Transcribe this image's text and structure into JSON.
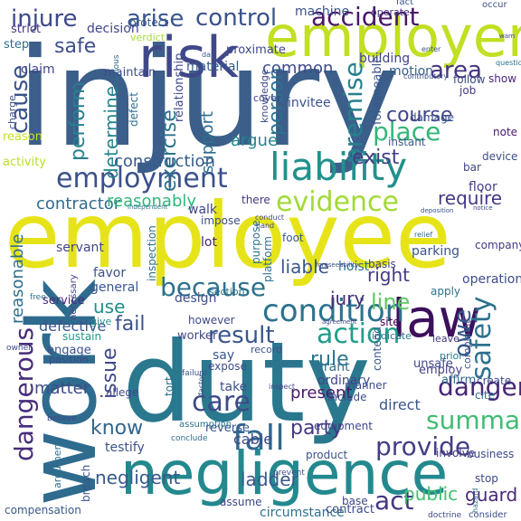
{
  "words": [
    {
      "text": "injury",
      "color": "#3b5f8a"
    },
    {
      "text": "employee",
      "color": "#e6e419"
    },
    {
      "text": "duty",
      "color": "#2a788e"
    },
    {
      "text": "work",
      "color": "#2f6b8e"
    },
    {
      "text": "negligence",
      "color": "#23898e"
    },
    {
      "text": "employer",
      "color": "#c2df23"
    },
    {
      "text": "risk",
      "color": "#3f4889"
    },
    {
      "text": "law",
      "color": "#3d0f5c"
    },
    {
      "text": "liability",
      "color": "#21918c"
    },
    {
      "text": "condition",
      "color": "#2c728e"
    },
    {
      "text": "fall",
      "color": "#31688e"
    },
    {
      "text": "employment",
      "color": "#3b518b"
    },
    {
      "text": "injure",
      "color": "#3e4989"
    },
    {
      "text": "arise",
      "color": "#39568c"
    },
    {
      "text": "control",
      "color": "#3b528b"
    },
    {
      "text": "accident",
      "color": "#481668"
    },
    {
      "text": "area",
      "color": "#46337f"
    },
    {
      "text": "person",
      "color": "#2c718e"
    },
    {
      "text": "premise",
      "color": "#27808e"
    },
    {
      "text": "place",
      "color": "#34b679"
    },
    {
      "text": "evidence",
      "color": "#a2da37"
    },
    {
      "text": "safety",
      "color": "#2d708e"
    },
    {
      "text": "danger",
      "color": "#482576"
    },
    {
      "text": "summary",
      "color": "#3fbc73"
    },
    {
      "text": "provide",
      "color": "#433e85"
    },
    {
      "text": "care",
      "color": "#3e4a89"
    },
    {
      "text": "because",
      "color": "#2d718e"
    },
    {
      "text": "result",
      "color": "#39558c"
    },
    {
      "text": "action",
      "color": "#1f9e89"
    },
    {
      "text": "issue",
      "color": "#3f4788"
    },
    {
      "text": "dangerous",
      "color": "#472d7b"
    },
    {
      "text": "cause",
      "color": "#3a538b"
    },
    {
      "text": "perform",
      "color": "#27808e"
    },
    {
      "text": "determine",
      "color": "#25848e"
    },
    {
      "text": "exercise",
      "color": "#2c738e"
    },
    {
      "text": "exist",
      "color": "#433d84"
    },
    {
      "text": "course",
      "color": "#404688"
    },
    {
      "text": "construction",
      "color": "#375b8d"
    },
    {
      "text": "contractor",
      "color": "#2f6c8e"
    },
    {
      "text": "reasonably",
      "color": "#31b57b"
    },
    {
      "text": "require",
      "color": "#443983"
    },
    {
      "text": "safe",
      "color": "#3d4e8a"
    },
    {
      "text": "common",
      "color": "#3e4c8a"
    },
    {
      "text": "act",
      "color": "#453581"
    },
    {
      "text": "know",
      "color": "#32658e"
    },
    {
      "text": "party",
      "color": "#453882"
    },
    {
      "text": "use",
      "color": "#21908d"
    },
    {
      "text": "fail",
      "color": "#3a538b"
    },
    {
      "text": "jury",
      "color": "#472c7a"
    },
    {
      "text": "line",
      "color": "#5ec962"
    },
    {
      "text": "owe",
      "color": "#38588c"
    },
    {
      "text": "negligent",
      "color": "#38598c"
    },
    {
      "text": "ladder",
      "color": "#38588c"
    },
    {
      "text": "public",
      "color": "#43bf71"
    },
    {
      "text": "guard",
      "color": "#482878"
    },
    {
      "text": "right",
      "color": "#443a83"
    },
    {
      "text": "liable",
      "color": "#39568c"
    },
    {
      "text": "support",
      "color": "#2e6f8e"
    },
    {
      "text": "argue",
      "color": "#24868e"
    },
    {
      "text": "rule",
      "color": "#2c728e"
    },
    {
      "text": "present",
      "color": "#481769"
    },
    {
      "text": "matter",
      "color": "#3e4c8a"
    },
    {
      "text": "reasonable",
      "color": "#2e6f8e"
    },
    {
      "text": "defective",
      "color": "#3a548c"
    },
    {
      "text": "machine",
      "color": "#3b518b"
    },
    {
      "text": "protect",
      "color": "#39568c"
    },
    {
      "text": "decision",
      "color": "#404588"
    },
    {
      "text": "material",
      "color": "#365c8d"
    },
    {
      "text": "motion",
      "color": "#34618d"
    },
    {
      "text": "building",
      "color": "#414487"
    },
    {
      "text": "invitee",
      "color": "#3b528b"
    },
    {
      "text": "claim",
      "color": "#404688"
    },
    {
      "text": "maintain",
      "color": "#3e4a89"
    },
    {
      "text": "strict",
      "color": "#453781"
    },
    {
      "text": "step",
      "color": "#2e6e8e"
    },
    {
      "text": "proximate",
      "color": "#3f4788"
    },
    {
      "text": "verdict",
      "color": "#a5db36"
    },
    {
      "text": "operate",
      "color": "#453581"
    },
    {
      "text": "occur",
      "color": "#3d4e8a"
    },
    {
      "text": "fact",
      "color": "#3b528b"
    },
    {
      "text": "show",
      "color": "#482878"
    },
    {
      "text": "follow",
      "color": "#3e4989"
    },
    {
      "text": "job",
      "color": "#453882"
    },
    {
      "text": "reason",
      "color": "#c8e020"
    },
    {
      "text": "activity",
      "color": "#b5de2b"
    },
    {
      "text": "relationship",
      "color": "#3f4788"
    },
    {
      "text": "defect",
      "color": "#2e6f8e"
    },
    {
      "text": "knowledge",
      "color": "#3e4a89"
    },
    {
      "text": "cover",
      "color": "#404688"
    },
    {
      "text": "instant",
      "color": "#38598c"
    },
    {
      "text": "damage",
      "color": "#3b528b"
    },
    {
      "text": "foreseeable",
      "color": "#39568c"
    },
    {
      "text": "note",
      "color": "#48186a"
    },
    {
      "text": "device",
      "color": "#3e4c8a"
    },
    {
      "text": "bar",
      "color": "#3f4788"
    },
    {
      "text": "floor",
      "color": "#433e85"
    },
    {
      "text": "there",
      "color": "#453781"
    },
    {
      "text": "walk",
      "color": "#414487"
    },
    {
      "text": "impose",
      "color": "#3d4e8a"
    },
    {
      "text": "servant",
      "color": "#404688"
    },
    {
      "text": "lot",
      "color": "#482475"
    },
    {
      "text": "foot",
      "color": "#38588c"
    },
    {
      "text": "purpose",
      "color": "#2c738e"
    },
    {
      "text": "platform",
      "color": "#2e6e8e"
    },
    {
      "text": "hoist",
      "color": "#2d708e"
    },
    {
      "text": "parking",
      "color": "#3b528b"
    },
    {
      "text": "company",
      "color": "#453781"
    },
    {
      "text": "basis",
      "color": "#404688"
    },
    {
      "text": "operation",
      "color": "#3e4c8a"
    },
    {
      "text": "apply",
      "color": "#2c738e"
    },
    {
      "text": "service",
      "color": "#482878"
    },
    {
      "text": "favor",
      "color": "#3b528b"
    },
    {
      "text": "general",
      "color": "#39568c"
    },
    {
      "text": "inspection",
      "color": "#2e6f8e"
    },
    {
      "text": "design",
      "color": "#3d4e8a"
    },
    {
      "text": "section",
      "color": "#2c718e"
    },
    {
      "text": "site",
      "color": "#440154"
    },
    {
      "text": "however",
      "color": "#3e4989"
    },
    {
      "text": "worker",
      "color": "#3f4788"
    },
    {
      "text": "give",
      "color": "#21918c"
    },
    {
      "text": "sustain",
      "color": "#1e9b8a"
    },
    {
      "text": "engage",
      "color": "#3b528b"
    },
    {
      "text": "position",
      "color": "#404688"
    },
    {
      "text": "record",
      "color": "#3b528b"
    },
    {
      "text": "say",
      "color": "#39568c"
    },
    {
      "text": "expose",
      "color": "#3e4c8a"
    },
    {
      "text": "agree",
      "color": "#2d708e"
    },
    {
      "text": "grant",
      "color": "#2e6f8e"
    },
    {
      "text": "ordinary",
      "color": "#3f4788"
    },
    {
      "text": "contend",
      "color": "#38598c"
    },
    {
      "text": "indicate",
      "color": "#2c738e"
    },
    {
      "text": "leave",
      "color": "#453581"
    },
    {
      "text": "unsafe",
      "color": "#3e4a89"
    },
    {
      "text": "employ",
      "color": "#433e85"
    },
    {
      "text": "complaint",
      "color": "#3b528b"
    },
    {
      "text": "prior",
      "color": "#2a788e"
    },
    {
      "text": "affirm",
      "color": "#2f6b8e"
    },
    {
      "text": "create",
      "color": "#3e4989"
    },
    {
      "text": "direct",
      "color": "#39568c"
    },
    {
      "text": "take",
      "color": "#3b528b"
    },
    {
      "text": "tort",
      "color": "#2c718e"
    },
    {
      "text": "equipment",
      "color": "#3f4788"
    },
    {
      "text": "include",
      "color": "#3e4c8a"
    },
    {
      "text": "manner",
      "color": "#3d4e8a"
    },
    {
      "text": "cite",
      "color": "#2e6e8e"
    },
    {
      "text": "allege",
      "color": "#3f4788"
    },
    {
      "text": "testify",
      "color": "#3b528b"
    },
    {
      "text": "reverse",
      "color": "#39568c"
    },
    {
      "text": "assumption",
      "color": "#2c738e"
    },
    {
      "text": "cable",
      "color": "#3e4a89"
    },
    {
      "text": "involve",
      "color": "#453882"
    },
    {
      "text": "business",
      "color": "#3f4788"
    },
    {
      "text": "product",
      "color": "#3b528b"
    },
    {
      "text": "circumstance",
      "color": "#2d708e"
    },
    {
      "text": "contract",
      "color": "#3e4c8a"
    },
    {
      "text": "base",
      "color": "#404688"
    },
    {
      "text": "stop",
      "color": "#3e4989"
    },
    {
      "text": "compensation",
      "color": "#38598c"
    },
    {
      "text": "argument",
      "color": "#2c718e"
    },
    {
      "text": "breach",
      "color": "#3b528b"
    },
    {
      "text": "necessary",
      "color": "#404688"
    },
    {
      "text": "conclude",
      "color": "#2e6f8e"
    },
    {
      "text": "prevent",
      "color": "#3d4e8a"
    },
    {
      "text": "assume",
      "color": "#3f4788"
    },
    {
      "text": "owner",
      "color": "#3e4a89"
    },
    {
      "text": "free",
      "color": "#2c738e"
    },
    {
      "text": "charge",
      "color": "#3b528b"
    },
    {
      "text": "believe",
      "color": "#404688"
    },
    {
      "text": "failure",
      "color": "#39568c"
    },
    {
      "text": "hazard",
      "color": "#2d708e"
    },
    {
      "text": "consider",
      "color": "#3e4c8a"
    },
    {
      "text": "doctrine",
      "color": "#3f4788"
    },
    {
      "text": "previous",
      "color": "#2e6e8e"
    },
    {
      "text": "contributory",
      "color": "#3b528b"
    },
    {
      "text": "conduct",
      "color": "#3e4a89"
    },
    {
      "text": "hand",
      "color": "#404688"
    },
    {
      "text": "independent",
      "color": "#2c718e"
    },
    {
      "text": "notice",
      "color": "#3d4e8a"
    },
    {
      "text": "warn",
      "color": "#3f4788"
    },
    {
      "text": "day",
      "color": "#39568c"
    },
    {
      "text": "enter",
      "color": "#3b528b"
    },
    {
      "text": "question",
      "color": "#2c738e"
    },
    {
      "text": "foreseeability",
      "color": "#3e4c8a"
    },
    {
      "text": "agreement",
      "color": "#404688"
    },
    {
      "text": "inspect",
      "color": "#3f4788"
    },
    {
      "text": "factor",
      "color": "#3d4e8a"
    },
    {
      "text": "relief",
      "color": "#2e6f8e"
    },
    {
      "text": "deposition",
      "color": "#3b528b"
    }
  ]
}
